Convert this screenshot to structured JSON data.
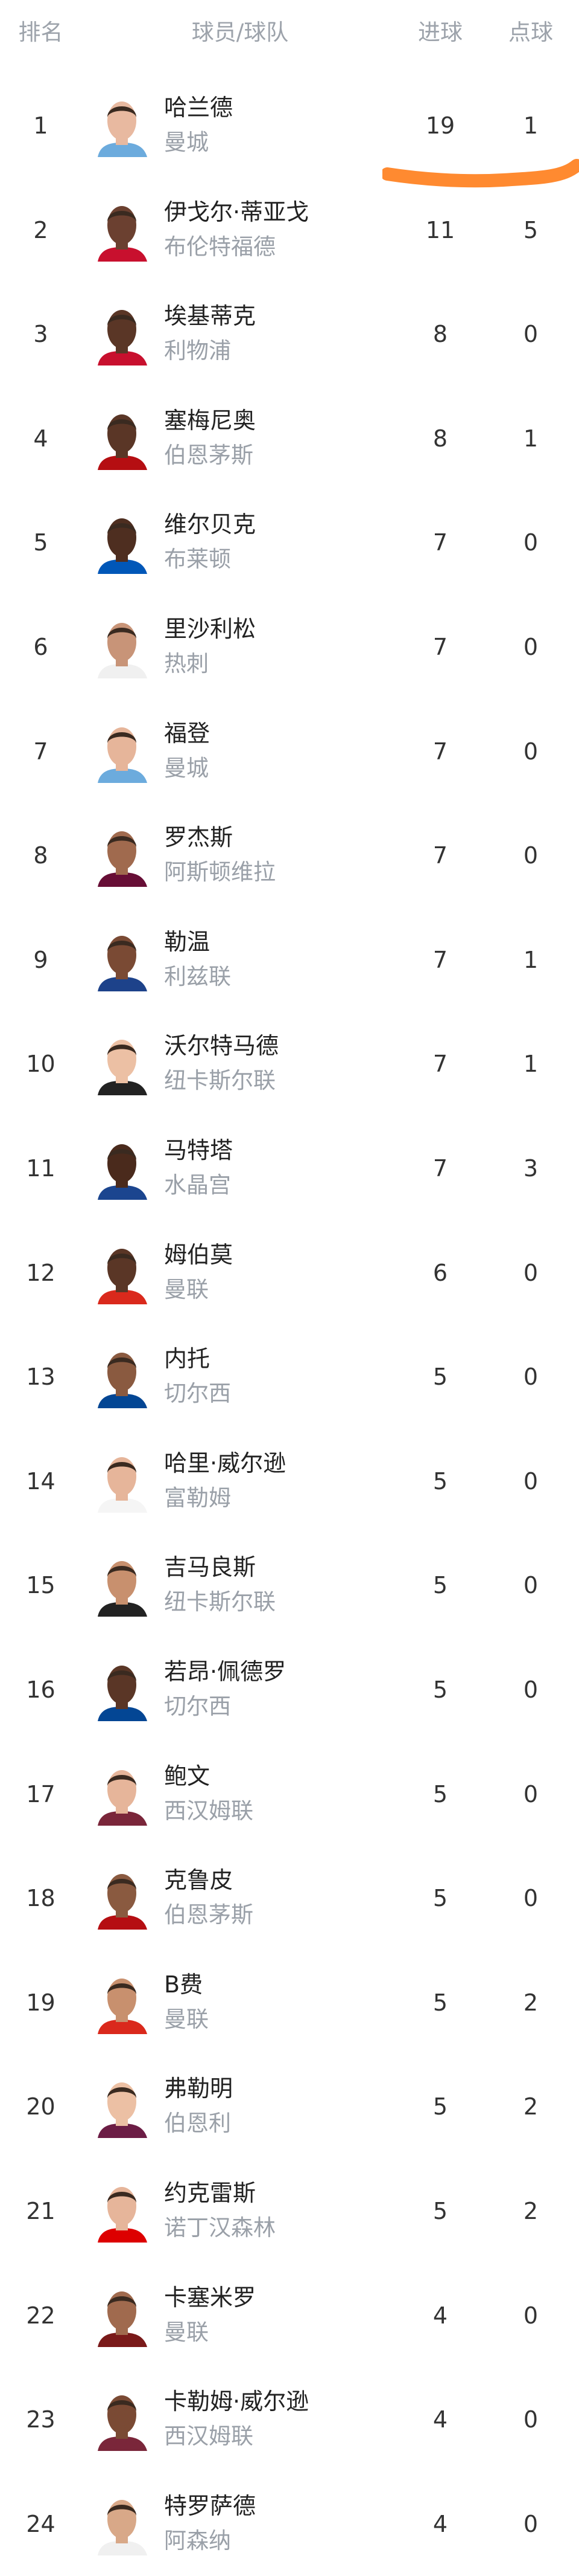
{
  "header": {
    "rank": "排名",
    "player_team": "球员/球队",
    "goals": "进球",
    "penalties": "点球"
  },
  "annotation_color": "#ff8a30",
  "players": [
    {
      "rank": "1",
      "name": "哈兰德",
      "team": "曼城",
      "goals": "19",
      "penalties": "1",
      "skin": "#e8b9a0",
      "shirt": "#6cabdd"
    },
    {
      "rank": "2",
      "name": "伊戈尔·蒂亚戈",
      "team": "布伦特福德",
      "goals": "11",
      "penalties": "5",
      "skin": "#6b4030",
      "shirt": "#c8102e"
    },
    {
      "rank": "3",
      "name": "埃基蒂克",
      "team": "利物浦",
      "goals": "8",
      "penalties": "0",
      "skin": "#5a3626",
      "shirt": "#c8102e"
    },
    {
      "rank": "4",
      "name": "塞梅尼奥",
      "team": "伯恩茅斯",
      "goals": "8",
      "penalties": "1",
      "skin": "#5a3626",
      "shirt": "#b50e12"
    },
    {
      "rank": "5",
      "name": "维尔贝克",
      "team": "布莱顿",
      "goals": "7",
      "penalties": "0",
      "skin": "#4e2e20",
      "shirt": "#0057b8"
    },
    {
      "rank": "6",
      "name": "里沙利松",
      "team": "热刺",
      "goals": "7",
      "penalties": "0",
      "skin": "#c89478",
      "shirt": "#f0f0f0"
    },
    {
      "rank": "7",
      "name": "福登",
      "team": "曼城",
      "goals": "7",
      "penalties": "0",
      "skin": "#e6b59a",
      "shirt": "#6cabdd"
    },
    {
      "rank": "8",
      "name": "罗杰斯",
      "team": "阿斯顿维拉",
      "goals": "7",
      "penalties": "0",
      "skin": "#a06a4e",
      "shirt": "#670e36"
    },
    {
      "rank": "9",
      "name": "勒温",
      "team": "利兹联",
      "goals": "7",
      "penalties": "1",
      "skin": "#7a4a34",
      "shirt": "#1d428a"
    },
    {
      "rank": "10",
      "name": "沃尔特马德",
      "team": "纽卡斯尔联",
      "goals": "7",
      "penalties": "1",
      "skin": "#ecc0a4",
      "shirt": "#222222"
    },
    {
      "rank": "11",
      "name": "马特塔",
      "team": "水晶宫",
      "goals": "7",
      "penalties": "3",
      "skin": "#4a2a1c",
      "shirt": "#1b458f"
    },
    {
      "rank": "12",
      "name": "姆伯莫",
      "team": "曼联",
      "goals": "6",
      "penalties": "0",
      "skin": "#5a3626",
      "shirt": "#da291c"
    },
    {
      "rank": "13",
      "name": "内托",
      "team": "切尔西",
      "goals": "5",
      "penalties": "0",
      "skin": "#8a5a40",
      "shirt": "#034694"
    },
    {
      "rank": "14",
      "name": "哈里·威尔逊",
      "team": "富勒姆",
      "goals": "5",
      "penalties": "0",
      "skin": "#e6b59a",
      "shirt": "#f5f5f5"
    },
    {
      "rank": "15",
      "name": "吉马良斯",
      "team": "纽卡斯尔联",
      "goals": "5",
      "penalties": "0",
      "skin": "#c8906e",
      "shirt": "#222222"
    },
    {
      "rank": "16",
      "name": "若昂·佩德罗",
      "team": "切尔西",
      "goals": "5",
      "penalties": "0",
      "skin": "#5a3626",
      "shirt": "#034694"
    },
    {
      "rank": "17",
      "name": "鲍文",
      "team": "西汉姆联",
      "goals": "5",
      "penalties": "0",
      "skin": "#e6b59a",
      "shirt": "#7a263a"
    },
    {
      "rank": "18",
      "name": "克鲁皮",
      "team": "伯恩茅斯",
      "goals": "5",
      "penalties": "0",
      "skin": "#8a5a40",
      "shirt": "#b50e12"
    },
    {
      "rank": "19",
      "name": "B费",
      "team": "曼联",
      "goals": "5",
      "penalties": "2",
      "skin": "#c8906e",
      "shirt": "#da291c"
    },
    {
      "rank": "20",
      "name": "弗勒明",
      "team": "伯恩利",
      "goals": "5",
      "penalties": "2",
      "skin": "#ecc0a4",
      "shirt": "#6c1d45"
    },
    {
      "rank": "21",
      "name": "约克雷斯",
      "team": "诺丁汉森林",
      "goals": "5",
      "penalties": "2",
      "skin": "#e6b59a",
      "shirt": "#dd0000"
    },
    {
      "rank": "22",
      "name": "卡塞米罗",
      "team": "曼联",
      "goals": "4",
      "penalties": "0",
      "skin": "#a06a4e",
      "shirt": "#7a1a1a"
    },
    {
      "rank": "23",
      "name": "卡勒姆·威尔逊",
      "team": "西汉姆联",
      "goals": "4",
      "penalties": "0",
      "skin": "#7a4a34",
      "shirt": "#7a263a"
    },
    {
      "rank": "24",
      "name": "特罗萨德",
      "team": "阿森纳",
      "goals": "4",
      "penalties": "0",
      "skin": "#d8a888",
      "shirt": "#f0f0f0"
    }
  ]
}
